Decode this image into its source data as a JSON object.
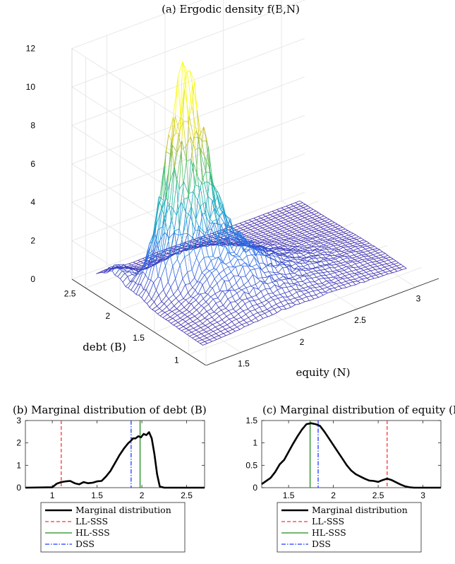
{
  "chart_data": [
    {
      "type": "surface",
      "title": "(a) Ergodic density f(B,N)",
      "xlabel": "equity (N)",
      "ylabel": "debt (B)",
      "zlabel": "",
      "x_ticks": [
        "1.5",
        "2",
        "2.5",
        "3"
      ],
      "y_ticks": [
        "1",
        "1.5",
        "2",
        "2.5"
      ],
      "z_ticks": [
        "0",
        "2",
        "4",
        "6",
        "8",
        "10",
        "12"
      ],
      "xlim": [
        1.2,
        3.2
      ],
      "ylim": [
        0.75,
        2.7
      ],
      "zlim": [
        0,
        12
      ],
      "peak": {
        "N": 1.75,
        "B": 2.0,
        "density": 9.0
      },
      "grid": true,
      "colormap": "parula"
    },
    {
      "type": "line",
      "title": "(b) Marginal distribution of debt (B)",
      "xlabel": "",
      "ylabel": "",
      "xlim": [
        0.7,
        2.7
      ],
      "ylim": [
        0,
        3
      ],
      "x_ticks": [
        "1",
        "1.5",
        "2",
        "2.5"
      ],
      "y_ticks": [
        "0",
        "1",
        "2",
        "3"
      ],
      "x": [
        0.7,
        1.0,
        1.05,
        1.1,
        1.15,
        1.2,
        1.25,
        1.3,
        1.35,
        1.4,
        1.45,
        1.5,
        1.55,
        1.6,
        1.65,
        1.7,
        1.75,
        1.8,
        1.85,
        1.88,
        1.9,
        1.93,
        1.96,
        1.99,
        2.02,
        2.05,
        2.08,
        2.11,
        2.14,
        2.17,
        2.2,
        2.25,
        2.7
      ],
      "series": [
        {
          "name": "Marginal distribution",
          "values": [
            0,
            0.02,
            0.18,
            0.25,
            0.28,
            0.3,
            0.2,
            0.15,
            0.25,
            0.2,
            0.22,
            0.28,
            0.3,
            0.5,
            0.75,
            1.1,
            1.45,
            1.75,
            2.0,
            2.1,
            2.2,
            2.2,
            2.3,
            2.25,
            2.4,
            2.35,
            2.48,
            2.2,
            1.5,
            0.6,
            0.05,
            0,
            0
          ]
        }
      ],
      "markers": [
        {
          "name": "LL-SSS",
          "x": 1.1,
          "color": "#ff3333",
          "style": "dashed"
        },
        {
          "name": "HL-SSS",
          "x": 1.98,
          "color": "#1e8c1e",
          "style": "solid"
        },
        {
          "name": "DSS",
          "x": 1.88,
          "color": "#1f3bff",
          "style": "dashdot"
        }
      ]
    },
    {
      "type": "line",
      "title": "(c) Marginal distribution of equity (N)",
      "xlabel": "",
      "ylabel": "",
      "xlim": [
        1.2,
        3.2
      ],
      "ylim": [
        0,
        1.5
      ],
      "x_ticks": [
        "1.5",
        "2",
        "2.5",
        "3"
      ],
      "y_ticks": [
        "0",
        "0.5",
        "1",
        "1.5"
      ],
      "x": [
        1.2,
        1.25,
        1.3,
        1.35,
        1.4,
        1.45,
        1.5,
        1.55,
        1.6,
        1.65,
        1.7,
        1.75,
        1.8,
        1.85,
        1.9,
        1.95,
        2.0,
        2.05,
        2.1,
        2.15,
        2.2,
        2.25,
        2.3,
        2.35,
        2.4,
        2.45,
        2.5,
        2.55,
        2.6,
        2.65,
        2.7,
        2.75,
        2.8,
        2.85,
        2.9,
        3.0,
        3.2
      ],
      "series": [
        {
          "name": "Marginal distribution",
          "values": [
            0.08,
            0.15,
            0.22,
            0.35,
            0.52,
            0.62,
            0.8,
            0.98,
            1.15,
            1.3,
            1.42,
            1.44,
            1.42,
            1.38,
            1.25,
            1.1,
            0.95,
            0.8,
            0.65,
            0.5,
            0.38,
            0.3,
            0.25,
            0.2,
            0.16,
            0.15,
            0.13,
            0.17,
            0.2,
            0.17,
            0.12,
            0.07,
            0.03,
            0.01,
            0,
            0,
            0
          ]
        }
      ],
      "markers": [
        {
          "name": "LL-SSS",
          "x": 2.6,
          "color": "#ff3333",
          "style": "dashed"
        },
        {
          "name": "HL-SSS",
          "x": 1.74,
          "color": "#1e8c1e",
          "style": "solid"
        },
        {
          "name": "DSS",
          "x": 1.83,
          "color": "#1f3bff",
          "style": "dashdot"
        }
      ]
    }
  ],
  "legend": {
    "placement": "below",
    "entries": [
      {
        "label": "Marginal distribution",
        "color": "#000000",
        "style": "thick-solid"
      },
      {
        "label": "LL-SSS",
        "color": "#ff3333",
        "style": "dashed"
      },
      {
        "label": "HL-SSS",
        "color": "#1e8c1e",
        "style": "solid"
      },
      {
        "label": "DSS",
        "color": "#1f3bff",
        "style": "dashdot"
      }
    ]
  }
}
